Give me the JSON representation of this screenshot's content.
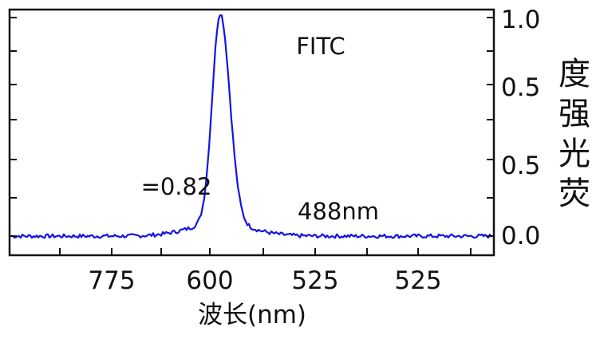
{
  "chart_data": {
    "type": "line",
    "title": "",
    "xlabel": "波长(nm)",
    "ylabel_chars": [
      "度",
      "强",
      "光",
      "荧"
    ],
    "x_tick_labels": [
      "775",
      "600",
      "525",
      "525"
    ],
    "y_tick_labels": [
      "1.0",
      "0.5",
      "0.5",
      "0.0"
    ],
    "ylim": [
      0,
      1.0
    ],
    "grid": false,
    "series": [
      {
        "color": "#1414e6",
        "peak_x_fraction": 0.435,
        "peak_value": 0.96,
        "baseline_value": 0.0
      }
    ],
    "annotations": {
      "dye": "FITC",
      "value": "=0.82",
      "wavelength": "488nm"
    }
  }
}
